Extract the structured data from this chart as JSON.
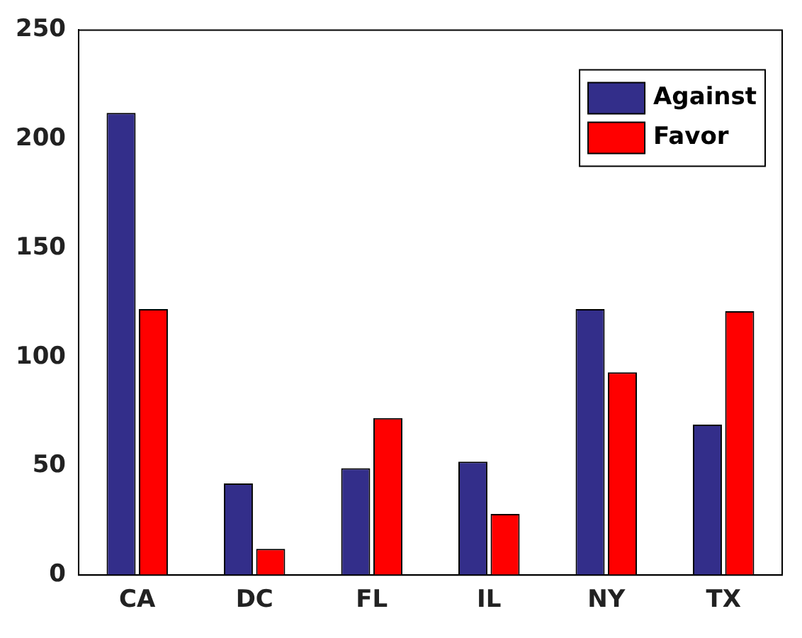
{
  "chart_data": {
    "type": "bar",
    "categories": [
      "CA",
      "DC",
      "FL",
      "IL",
      "NY",
      "TX"
    ],
    "series": [
      {
        "name": "Against",
        "color": "#332e8a",
        "values": [
          212,
          42,
          49,
          52,
          122,
          69
        ]
      },
      {
        "name": "Favor",
        "color": "#ff0000",
        "values": [
          122,
          12,
          72,
          28,
          93,
          121
        ]
      }
    ],
    "ylim": [
      0,
      250
    ],
    "yticks": [
      0,
      50,
      100,
      150,
      200,
      250
    ],
    "grid": false,
    "legend": "top right"
  }
}
